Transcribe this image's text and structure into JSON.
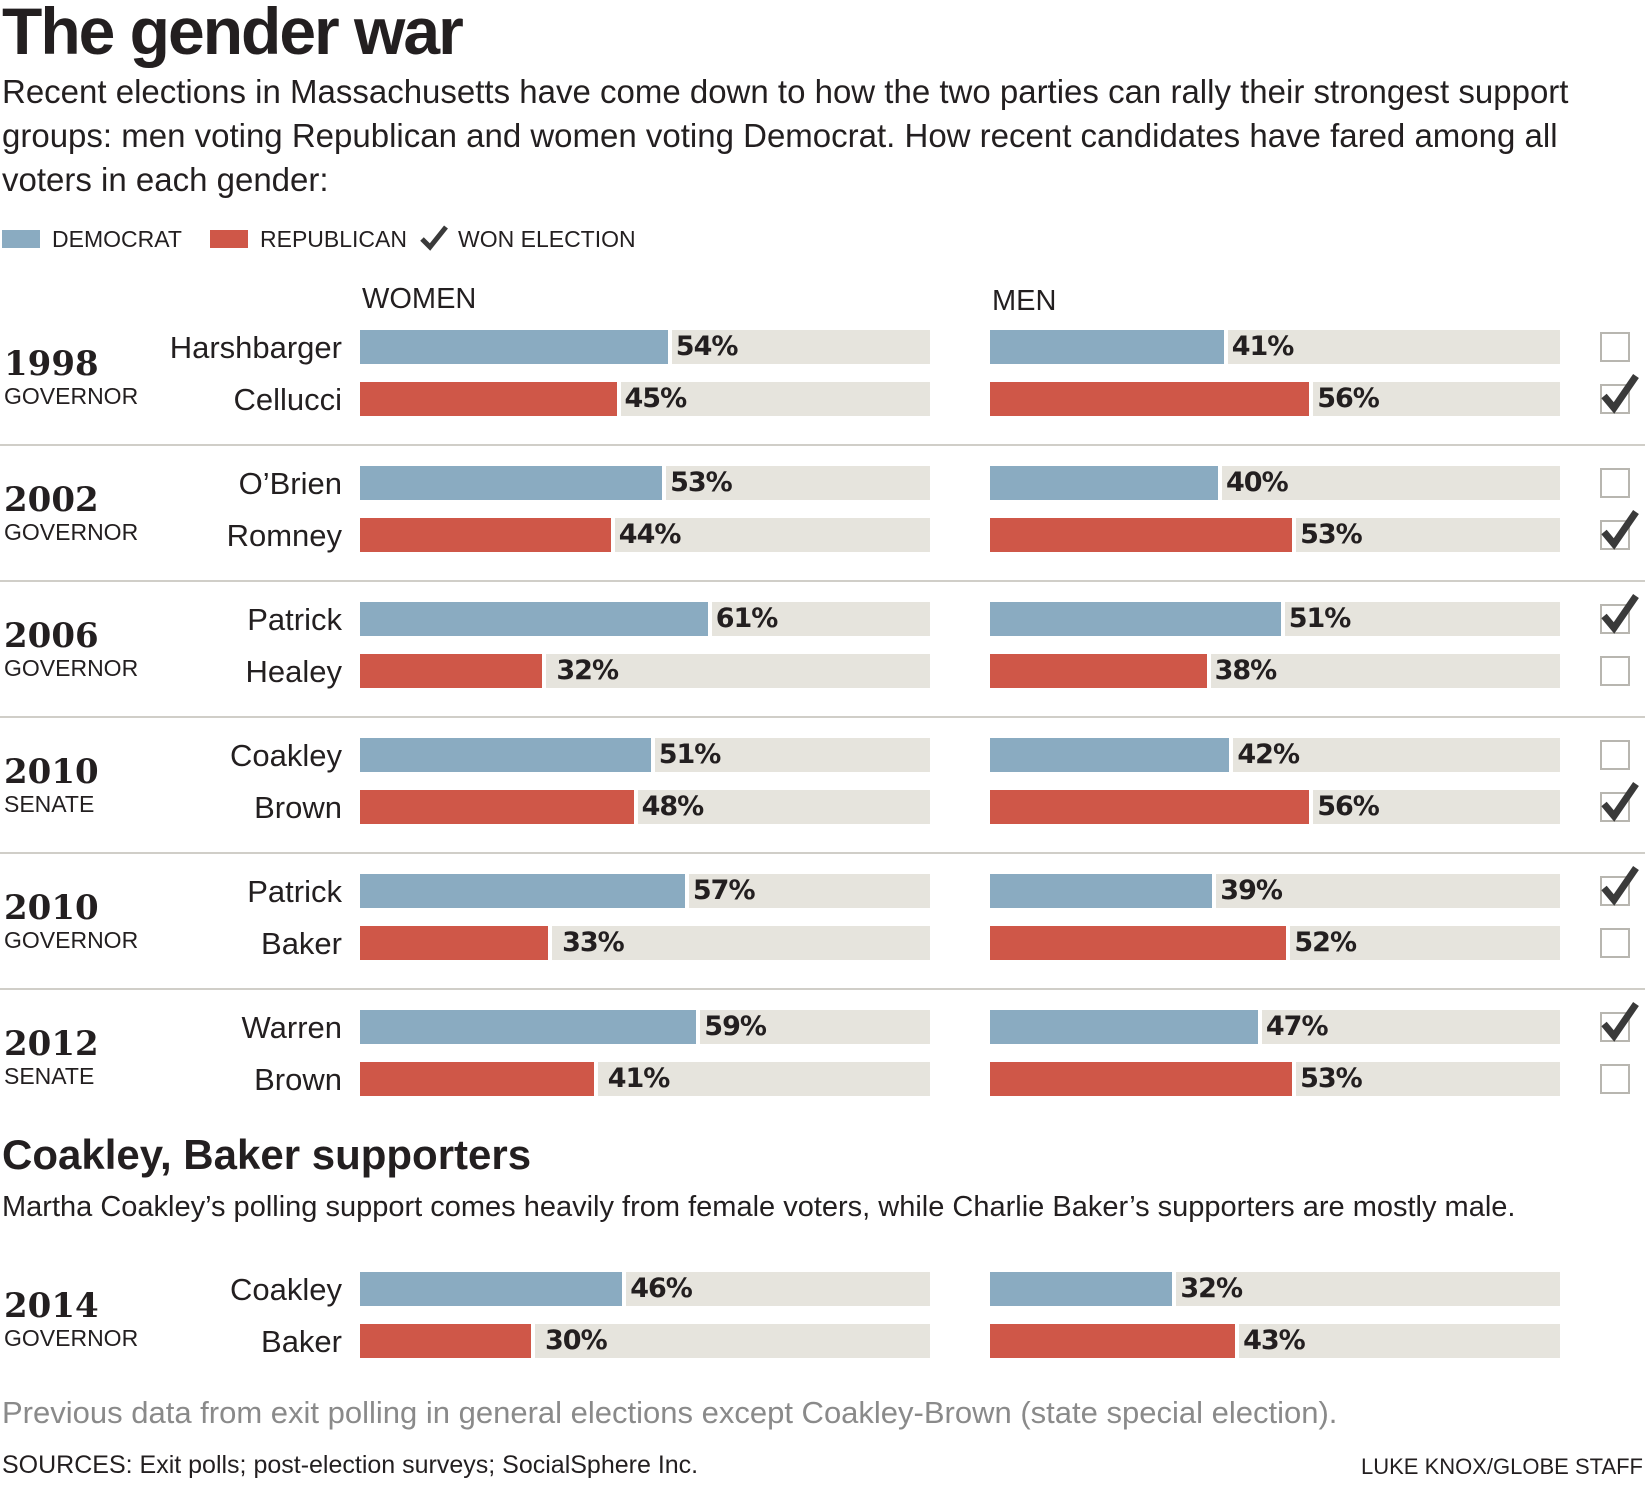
{
  "header": {
    "title": "The gender war",
    "intro": "Recent elections in Massachusetts have come down to how the two parties can rally their strongest support groups: men voting Republican and women voting Democrat. How recent candidates have fared among all voters in each gender:"
  },
  "legend": {
    "democrat": "DEMOCRAT",
    "republican": "REPUBLICAN",
    "won": "WON ELECTION"
  },
  "columns": {
    "women": "WOMEN",
    "men": "MEN"
  },
  "colors": {
    "democrat": "#8aabc1",
    "republican": "#cf5748",
    "track": "#e6e4dd",
    "check": "#3a3a3a"
  },
  "chart_data": {
    "type": "bar",
    "orientation": "horizontal",
    "xlim": [
      0,
      100
    ],
    "groups": [
      "WOMEN",
      "MEN"
    ],
    "elections": [
      {
        "year": "1998",
        "office": "GOVERNOR",
        "candidates": [
          {
            "name": "Harshbarger",
            "party": "democrat",
            "women": 54,
            "men": 41,
            "won": false
          },
          {
            "name": "Cellucci",
            "party": "republican",
            "women": 45,
            "men": 56,
            "won": true
          }
        ]
      },
      {
        "year": "2002",
        "office": "GOVERNOR",
        "candidates": [
          {
            "name": "O’Brien",
            "party": "democrat",
            "women": 53,
            "men": 40,
            "won": false
          },
          {
            "name": "Romney",
            "party": "republican",
            "women": 44,
            "men": 53,
            "won": true
          }
        ]
      },
      {
        "year": "2006",
        "office": "GOVERNOR",
        "candidates": [
          {
            "name": "Patrick",
            "party": "democrat",
            "women": 61,
            "men": 51,
            "won": true
          },
          {
            "name": "Healey",
            "party": "republican",
            "women": 32,
            "men": 38,
            "won": false
          }
        ]
      },
      {
        "year": "2010",
        "office": "SENATE",
        "candidates": [
          {
            "name": "Coakley",
            "party": "democrat",
            "women": 51,
            "men": 42,
            "won": false
          },
          {
            "name": "Brown",
            "party": "republican",
            "women": 48,
            "men": 56,
            "won": true
          }
        ]
      },
      {
        "year": "2010",
        "office": "GOVERNOR",
        "candidates": [
          {
            "name": "Patrick",
            "party": "democrat",
            "women": 57,
            "men": 39,
            "won": true
          },
          {
            "name": "Baker",
            "party": "republican",
            "women": 33,
            "men": 52,
            "won": false
          }
        ]
      },
      {
        "year": "2012",
        "office": "SENATE",
        "candidates": [
          {
            "name": "Warren",
            "party": "democrat",
            "women": 59,
            "men": 47,
            "won": true
          },
          {
            "name": "Brown",
            "party": "republican",
            "women": 41,
            "men": 53,
            "won": false
          }
        ]
      }
    ],
    "poll_2014": {
      "year": "2014",
      "office": "GOVERNOR",
      "candidates": [
        {
          "name": "Coakley",
          "party": "democrat",
          "women": 46,
          "men": 32
        },
        {
          "name": "Baker",
          "party": "republican",
          "women": 30,
          "men": 43
        }
      ]
    }
  },
  "section2": {
    "title": "Coakley, Baker supporters",
    "text": "Martha Coakley’s polling support comes heavily from female voters, while Charlie Baker’s supporters are mostly male."
  },
  "footer": {
    "note": "Previous data from exit polling in general elections except Coakley-Brown (state special election).",
    "sources": "SOURCES: Exit polls; post-election surveys; SocialSphere Inc.",
    "credit": "LUKE KNOX/GLOBE STAFF"
  }
}
